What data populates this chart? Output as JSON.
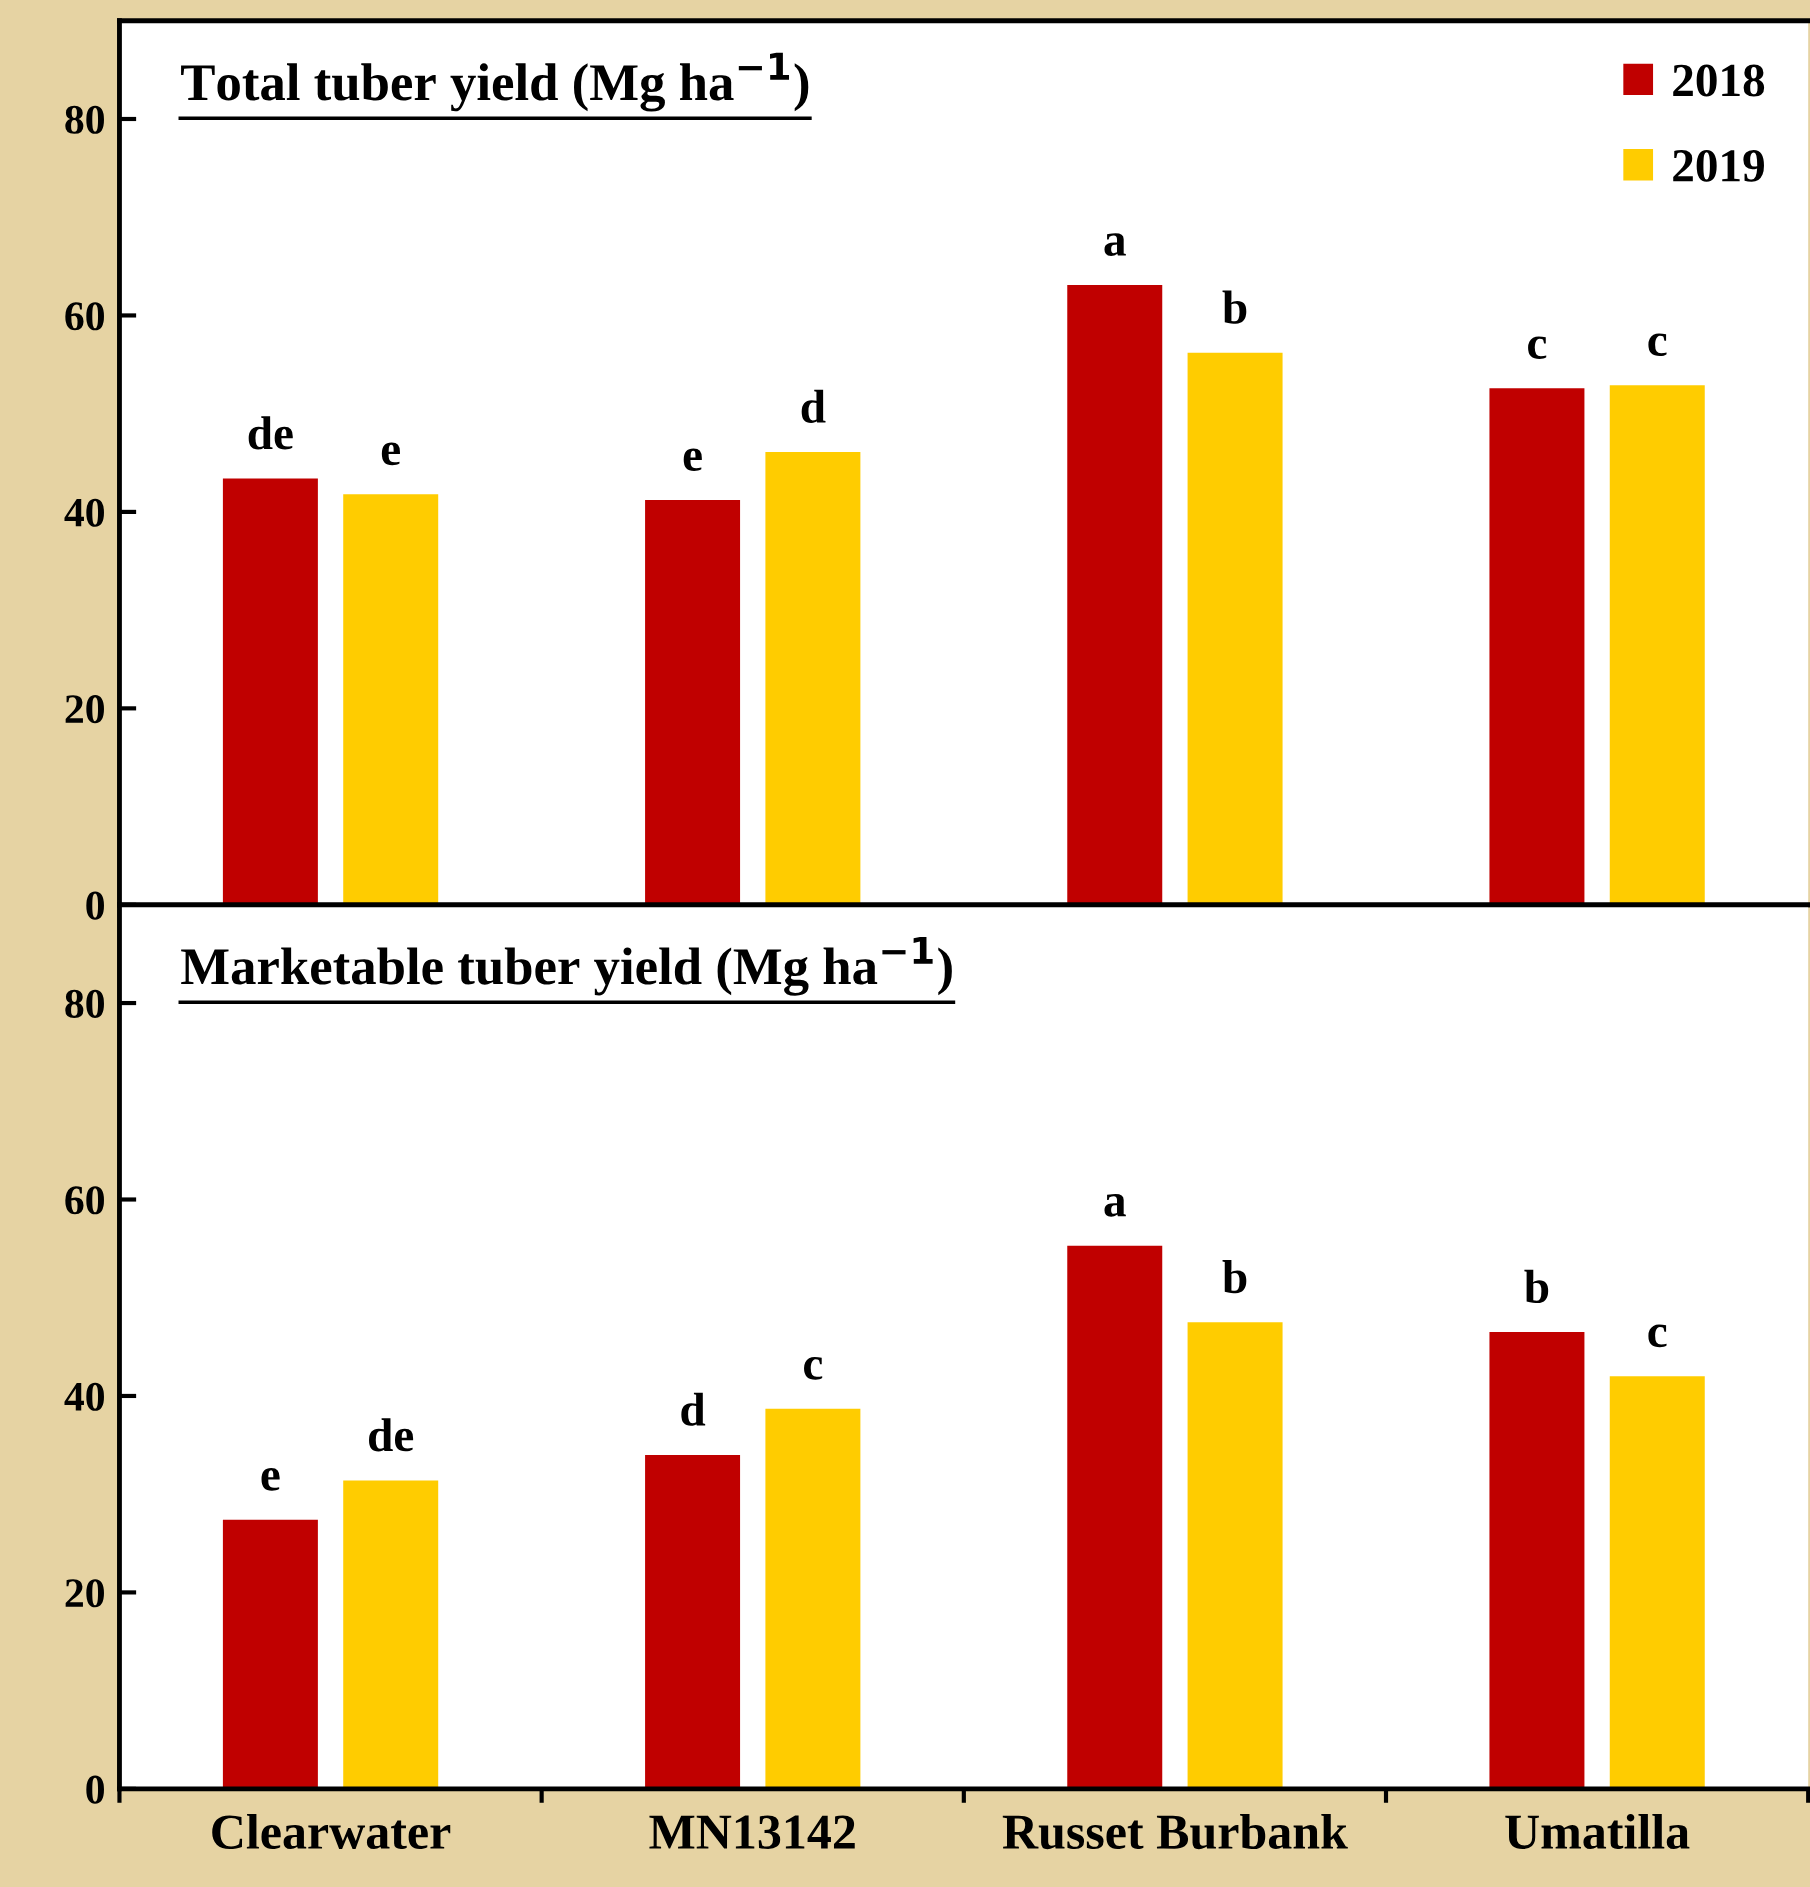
{
  "chart_data": [
    {
      "type": "bar",
      "title": "Total tuber yield (Mg ha$^{−1}$)",
      "categories": [
        null,
        null,
        null,
        null
      ],
      "series": [
        {
          "name": "2018",
          "color": "#c00000",
          "values": [
            43.4,
            41.2,
            63.1,
            52.6
          ],
          "value_labels": [
            "de",
            "e",
            "a",
            "c"
          ]
        },
        {
          "name": "2019",
          "color": "#ffcc00",
          "values": [
            41.8,
            46.1,
            56.2,
            52.9
          ],
          "value_labels": [
            "e",
            "d",
            "b",
            "c"
          ]
        }
      ],
      "ylim": [
        0,
        90
      ],
      "yticks": [
        0,
        20,
        40,
        60,
        80
      ],
      "tick_labels": "y",
      "legend": "top right",
      "grid": false
    },
    {
      "type": "bar",
      "title": "Marketable tuber yield (Mg ha$^{−1}$)",
      "categories": [
        "Clearwater",
        "MN13142",
        "Russet Burbank",
        "Umatilla"
      ],
      "series": [
        {
          "name": "2018",
          "color": "#c00000",
          "values": [
            27.4,
            34.0,
            55.3,
            46.5
          ],
          "value_labels": [
            "e",
            "d",
            "a",
            "b"
          ]
        },
        {
          "name": "2019",
          "color": "#ffcc00",
          "values": [
            31.4,
            38.7,
            47.5,
            42.0
          ],
          "value_labels": [
            "de",
            "c",
            "b",
            "c"
          ]
        }
      ],
      "ylim": [
        0,
        90
      ],
      "yticks": [
        0,
        20,
        40,
        60,
        80
      ],
      "legend": false,
      "grid": false
    }
  ]
}
